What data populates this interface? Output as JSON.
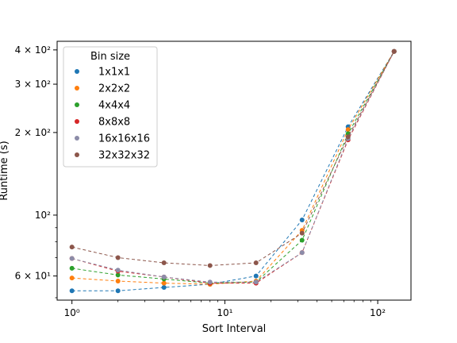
{
  "chart_data": {
    "type": "line",
    "title": "",
    "xlabel": "Sort Interval",
    "ylabel": "Runtime (s)",
    "xscale": "log",
    "yscale": "log",
    "xlim": [
      0.8,
      165
    ],
    "ylim": [
      49,
      430
    ],
    "grid": false,
    "legend": {
      "title": "Bin size",
      "position": "upper-left"
    },
    "x_ticks": [
      {
        "value": 1,
        "label": "10⁰"
      },
      {
        "value": 10,
        "label": "10¹"
      },
      {
        "value": 100,
        "label": "10²"
      }
    ],
    "y_ticks": [
      {
        "value": 60,
        "label": "6 × 10¹"
      },
      {
        "value": 100,
        "label": "10²"
      },
      {
        "value": 200,
        "label": "2 × 10²"
      },
      {
        "value": 300,
        "label": "3 × 10²"
      },
      {
        "value": 400,
        "label": "4 × 10²"
      }
    ],
    "x": [
      1,
      2,
      4,
      8,
      16,
      32,
      64,
      128
    ],
    "series": [
      {
        "name": "1x1x1",
        "color": "#1f77b4",
        "values": [
          53,
          53,
          54.5,
          56,
          60,
          96,
          210,
          395
        ]
      },
      {
        "name": "2x2x2",
        "color": "#ff7f0e",
        "values": [
          59,
          57.5,
          56.5,
          56,
          57.5,
          88,
          205,
          395
        ]
      },
      {
        "name": "4x4x4",
        "color": "#2ca02c",
        "values": [
          64,
          60.5,
          58.5,
          56.5,
          57,
          81,
          198,
          395
        ]
      },
      {
        "name": "8x8x8",
        "color": "#d62728",
        "values": [
          69.5,
          62.5,
          59.5,
          56.5,
          56.5,
          73,
          188,
          395
        ]
      },
      {
        "name": "16x16x16",
        "color": "#8c8ca8",
        "values": [
          69.5,
          63,
          59.5,
          57,
          57,
          73,
          190,
          395
        ]
      },
      {
        "name": "32x32x32",
        "color": "#8c564b",
        "values": [
          76.5,
          70,
          67,
          65.5,
          67,
          86,
          193,
          395
        ]
      }
    ]
  }
}
